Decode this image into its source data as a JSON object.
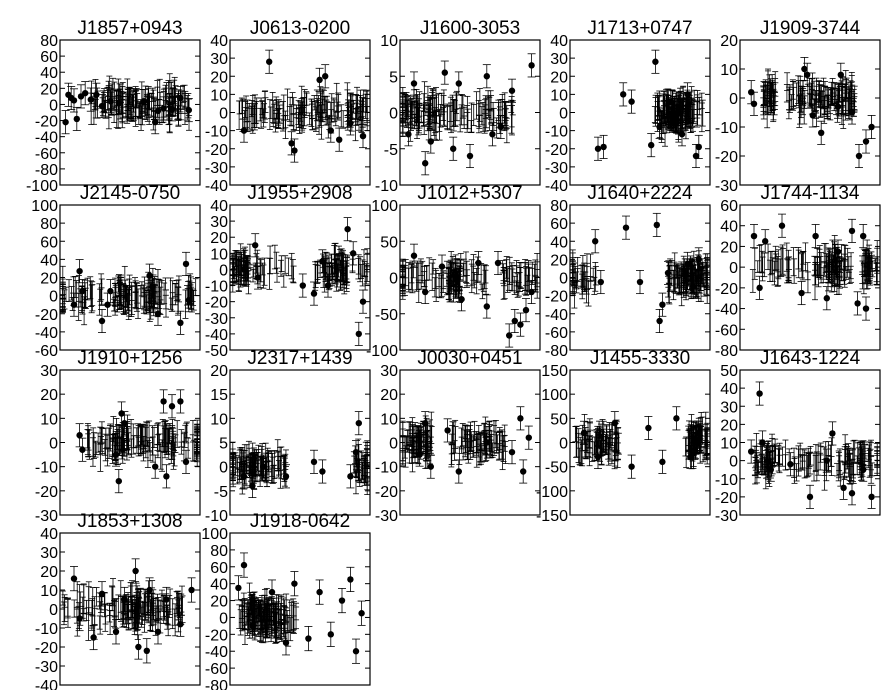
{
  "figure": {
    "background": "#ffffff",
    "ink": "#000000"
  },
  "chart_data": [
    {
      "type": "scatter",
      "title": "J1857+0943",
      "ylim": [
        -100,
        80
      ],
      "yticks": [
        80,
        60,
        40,
        20,
        0,
        -20,
        -40,
        -60,
        -80,
        -100
      ],
      "xlabel": "",
      "ylabel": "",
      "grid": false,
      "error_bars": true,
      "points": [
        [
          0.04,
          -22
        ],
        [
          0.06,
          12
        ],
        [
          0.08,
          8
        ],
        [
          0.1,
          5
        ],
        [
          0.12,
          -18
        ],
        [
          0.15,
          10
        ],
        [
          0.18,
          14
        ],
        [
          0.22,
          6
        ],
        [
          0.26,
          12
        ],
        [
          0.3,
          -2
        ],
        [
          0.36,
          4
        ],
        [
          0.42,
          2
        ],
        [
          0.6,
          4
        ],
        [
          0.68,
          -22
        ],
        [
          0.7,
          -8
        ],
        [
          0.74,
          -5
        ],
        [
          0.8,
          -6
        ],
        [
          0.86,
          8
        ],
        [
          0.92,
          -7
        ]
      ]
    },
    {
      "type": "scatter",
      "title": "J0613-0200",
      "ylim": [
        -40,
        40
      ],
      "yticks": [
        40,
        30,
        20,
        10,
        0,
        -10,
        -20,
        -30,
        -40
      ],
      "xlabel": "",
      "ylabel": "",
      "grid": false,
      "error_bars": true,
      "points": [
        [
          0.1,
          -10
        ],
        [
          0.28,
          28
        ],
        [
          0.44,
          -17
        ],
        [
          0.46,
          -21
        ],
        [
          0.64,
          18
        ],
        [
          0.68,
          20
        ],
        [
          0.72,
          -10
        ],
        [
          0.78,
          -15
        ],
        [
          0.86,
          -6
        ],
        [
          0.95,
          -13
        ]
      ]
    },
    {
      "type": "scatter",
      "title": "J1600-3053",
      "ylim": [
        -10,
        10
      ],
      "yticks": [
        10,
        5,
        0,
        -5,
        -10
      ],
      "xlabel": "",
      "ylabel": "",
      "grid": false,
      "error_bars": true,
      "points": [
        [
          0.06,
          -3
        ],
        [
          0.1,
          4
        ],
        [
          0.18,
          -7
        ],
        [
          0.22,
          -4
        ],
        [
          0.32,
          5.5
        ],
        [
          0.38,
          -5
        ],
        [
          0.42,
          4
        ],
        [
          0.5,
          -6
        ],
        [
          0.62,
          5
        ],
        [
          0.66,
          -3
        ],
        [
          0.72,
          -2
        ],
        [
          0.8,
          3
        ],
        [
          0.94,
          6.5
        ]
      ]
    },
    {
      "type": "scatter",
      "title": "J1713+0747",
      "ylim": [
        -40,
        40
      ],
      "yticks": [
        40,
        30,
        20,
        10,
        0,
        -10,
        -20,
        -30,
        -40
      ],
      "xlabel": "",
      "ylabel": "",
      "grid": false,
      "error_bars": true,
      "points": [
        [
          0.2,
          -20
        ],
        [
          0.24,
          -19
        ],
        [
          0.38,
          10
        ],
        [
          0.44,
          6
        ],
        [
          0.58,
          -18
        ],
        [
          0.61,
          28
        ],
        [
          0.64,
          -8
        ],
        [
          0.72,
          6
        ],
        [
          0.8,
          -12
        ],
        [
          0.9,
          -24
        ],
        [
          0.92,
          -19
        ],
        [
          0.84,
          10
        ]
      ]
    },
    {
      "type": "scatter",
      "title": "J1909-3744",
      "ylim": [
        -30,
        20
      ],
      "yticks": [
        20,
        10,
        0,
        -10,
        -20,
        -30
      ],
      "xlabel": "",
      "ylabel": "",
      "grid": false,
      "error_bars": true,
      "points": [
        [
          0.08,
          2
        ],
        [
          0.1,
          -2
        ],
        [
          0.46,
          10
        ],
        [
          0.48,
          8
        ],
        [
          0.52,
          -6
        ],
        [
          0.58,
          -12
        ],
        [
          0.7,
          -3
        ],
        [
          0.72,
          8
        ],
        [
          0.8,
          -5
        ],
        [
          0.85,
          -20
        ],
        [
          0.9,
          -15
        ],
        [
          0.94,
          -10
        ]
      ]
    },
    {
      "type": "scatter",
      "title": "J2145-0750",
      "ylim": [
        -60,
        100
      ],
      "yticks": [
        100,
        80,
        60,
        40,
        20,
        0,
        -20,
        -40,
        -60
      ],
      "xlabel": "",
      "ylabel": "",
      "grid": false,
      "error_bars": true,
      "points": [
        [
          0.1,
          -10
        ],
        [
          0.14,
          27
        ],
        [
          0.16,
          5
        ],
        [
          0.3,
          -28
        ],
        [
          0.34,
          -10
        ],
        [
          0.36,
          5
        ],
        [
          0.64,
          22
        ],
        [
          0.66,
          10
        ],
        [
          0.7,
          -20
        ],
        [
          0.86,
          -30
        ],
        [
          0.9,
          35
        ],
        [
          0.92,
          -5
        ]
      ]
    },
    {
      "type": "scatter",
      "title": "J1955+2908",
      "ylim": [
        -50,
        40
      ],
      "yticks": [
        40,
        30,
        20,
        10,
        0,
        -10,
        -20,
        -30,
        -40,
        -50
      ],
      "xlabel": "",
      "ylabel": "",
      "grid": false,
      "error_bars": true,
      "points": [
        [
          0.1,
          0
        ],
        [
          0.18,
          15
        ],
        [
          0.2,
          -5
        ],
        [
          0.52,
          -10
        ],
        [
          0.6,
          -15
        ],
        [
          0.66,
          5
        ],
        [
          0.7,
          -10
        ],
        [
          0.84,
          25
        ],
        [
          0.88,
          10
        ],
        [
          0.92,
          -40
        ],
        [
          0.95,
          -20
        ]
      ]
    },
    {
      "type": "scatter",
      "title": "J1012+5307",
      "ylim": [
        -100,
        100
      ],
      "yticks": [
        100,
        50,
        0,
        -50,
        -100
      ],
      "xlabel": "",
      "ylabel": "",
      "grid": false,
      "error_bars": true,
      "points": [
        [
          0.1,
          30
        ],
        [
          0.18,
          -20
        ],
        [
          0.3,
          15
        ],
        [
          0.44,
          -30
        ],
        [
          0.56,
          20
        ],
        [
          0.62,
          -40
        ],
        [
          0.7,
          20
        ],
        [
          0.78,
          -80
        ],
        [
          0.82,
          -60
        ],
        [
          0.86,
          -65
        ],
        [
          0.9,
          -45
        ],
        [
          0.94,
          -20
        ]
      ]
    },
    {
      "type": "scatter",
      "title": "J1640+2224",
      "ylim": [
        -80,
        80
      ],
      "yticks": [
        80,
        60,
        40,
        20,
        0,
        -20,
        -40,
        -60,
        -80
      ],
      "xlabel": "",
      "ylabel": "",
      "grid": false,
      "error_bars": true,
      "points": [
        [
          0.18,
          40
        ],
        [
          0.22,
          -5
        ],
        [
          0.4,
          55
        ],
        [
          0.5,
          -5
        ],
        [
          0.62,
          58
        ],
        [
          0.64,
          -48
        ],
        [
          0.66,
          -30
        ],
        [
          0.7,
          5
        ],
        [
          0.84,
          15
        ],
        [
          0.88,
          -10
        ],
        [
          0.92,
          20
        ]
      ]
    },
    {
      "type": "scatter",
      "title": "J1744-1134",
      "ylim": [
        -80,
        60
      ],
      "yticks": [
        60,
        40,
        20,
        0,
        -20,
        -40,
        -60,
        -80
      ],
      "xlabel": "",
      "ylabel": "",
      "grid": false,
      "error_bars": true,
      "points": [
        [
          0.1,
          30
        ],
        [
          0.14,
          -20
        ],
        [
          0.18,
          25
        ],
        [
          0.3,
          40
        ],
        [
          0.44,
          -25
        ],
        [
          0.54,
          30
        ],
        [
          0.62,
          -30
        ],
        [
          0.7,
          15
        ],
        [
          0.8,
          35
        ],
        [
          0.84,
          -35
        ],
        [
          0.88,
          30
        ],
        [
          0.9,
          -40
        ]
      ]
    },
    {
      "type": "scatter",
      "title": "J1910+1256",
      "ylim": [
        -30,
        30
      ],
      "yticks": [
        30,
        20,
        10,
        0,
        -10,
        -20,
        -30
      ],
      "xlabel": "",
      "ylabel": "",
      "grid": false,
      "error_bars": true,
      "points": [
        [
          0.14,
          3
        ],
        [
          0.16,
          -3
        ],
        [
          0.4,
          -5
        ],
        [
          0.42,
          -16
        ],
        [
          0.44,
          12
        ],
        [
          0.46,
          8
        ],
        [
          0.68,
          -10
        ],
        [
          0.74,
          17
        ],
        [
          0.76,
          -14
        ],
        [
          0.8,
          15
        ],
        [
          0.86,
          17
        ],
        [
          0.9,
          -8
        ]
      ]
    },
    {
      "type": "scatter",
      "title": "J2317+1439",
      "ylim": [
        -10,
        20
      ],
      "yticks": [
        20,
        15,
        10,
        5,
        0,
        -5,
        -10
      ],
      "xlabel": "",
      "ylabel": "",
      "grid": false,
      "error_bars": true,
      "points": [
        [
          0.1,
          -2
        ],
        [
          0.16,
          -4
        ],
        [
          0.24,
          0
        ],
        [
          0.4,
          -2
        ],
        [
          0.6,
          1
        ],
        [
          0.66,
          -1
        ],
        [
          0.86,
          -2
        ],
        [
          0.9,
          3
        ],
        [
          0.92,
          9
        ]
      ]
    },
    {
      "type": "scatter",
      "title": "J0030+0451",
      "ylim": [
        -30,
        30
      ],
      "yticks": [
        30,
        20,
        10,
        0,
        -10,
        -20,
        -30
      ],
      "xlabel": "",
      "ylabel": "",
      "grid": false,
      "error_bars": true,
      "points": [
        [
          0.14,
          -5
        ],
        [
          0.18,
          8
        ],
        [
          0.22,
          -10
        ],
        [
          0.34,
          5
        ],
        [
          0.42,
          -12
        ],
        [
          0.62,
          0
        ],
        [
          0.8,
          -4
        ],
        [
          0.86,
          10
        ],
        [
          0.88,
          -12
        ],
        [
          0.92,
          2
        ]
      ]
    },
    {
      "type": "scatter",
      "title": "J1455-3330",
      "ylim": [
        -150,
        150
      ],
      "yticks": [
        150,
        100,
        50,
        0,
        -50,
        -100,
        -150
      ],
      "xlabel": "",
      "ylabel": "",
      "grid": false,
      "error_bars": true,
      "points": [
        [
          0.1,
          20
        ],
        [
          0.2,
          -30
        ],
        [
          0.32,
          40
        ],
        [
          0.44,
          -50
        ],
        [
          0.56,
          30
        ],
        [
          0.66,
          -40
        ],
        [
          0.76,
          50
        ],
        [
          0.86,
          -30
        ],
        [
          0.92,
          20
        ]
      ]
    },
    {
      "type": "scatter",
      "title": "J1643-1224",
      "ylim": [
        -30,
        50
      ],
      "yticks": [
        50,
        40,
        30,
        20,
        10,
        0,
        -10,
        -20,
        -30
      ],
      "xlabel": "",
      "ylabel": "",
      "grid": false,
      "error_bars": true,
      "points": [
        [
          0.08,
          5
        ],
        [
          0.14,
          37
        ],
        [
          0.16,
          10
        ],
        [
          0.22,
          -5
        ],
        [
          0.36,
          -2
        ],
        [
          0.5,
          -20
        ],
        [
          0.62,
          0
        ],
        [
          0.66,
          15
        ],
        [
          0.74,
          -15
        ],
        [
          0.8,
          -18
        ],
        [
          0.88,
          -5
        ],
        [
          0.94,
          -20
        ]
      ]
    },
    {
      "type": "scatter",
      "title": "J1853+1308",
      "ylim": [
        -40,
        40
      ],
      "yticks": [
        40,
        30,
        20,
        10,
        0,
        -10,
        -20,
        -30,
        -40
      ],
      "xlabel": "",
      "ylabel": "",
      "grid": false,
      "error_bars": true,
      "points": [
        [
          0.1,
          16
        ],
        [
          0.14,
          -5
        ],
        [
          0.24,
          -15
        ],
        [
          0.3,
          8
        ],
        [
          0.4,
          -12
        ],
        [
          0.46,
          5
        ],
        [
          0.54,
          20
        ],
        [
          0.56,
          -20
        ],
        [
          0.62,
          -22
        ],
        [
          0.64,
          10
        ],
        [
          0.7,
          -12
        ],
        [
          0.76,
          5
        ],
        [
          0.86,
          -8
        ],
        [
          0.94,
          10
        ]
      ]
    },
    {
      "type": "scatter",
      "title": "J1918-0642",
      "ylim": [
        -80,
        100
      ],
      "yticks": [
        100,
        80,
        60,
        40,
        20,
        0,
        -20,
        -40,
        -60,
        -80
      ],
      "xlabel": "",
      "ylabel": "",
      "grid": false,
      "error_bars": true,
      "points": [
        [
          0.06,
          35
        ],
        [
          0.1,
          62
        ],
        [
          0.16,
          -10
        ],
        [
          0.3,
          30
        ],
        [
          0.4,
          -30
        ],
        [
          0.46,
          40
        ],
        [
          0.56,
          -25
        ],
        [
          0.64,
          30
        ],
        [
          0.72,
          -20
        ],
        [
          0.8,
          20
        ],
        [
          0.86,
          45
        ],
        [
          0.9,
          -40
        ],
        [
          0.94,
          5
        ]
      ]
    }
  ]
}
